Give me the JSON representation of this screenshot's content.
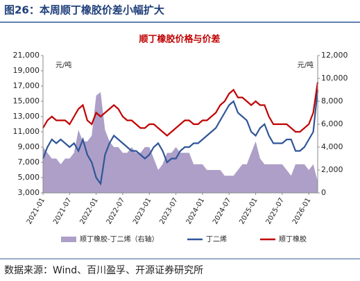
{
  "header": {
    "title": "图26：本周顺丁橡胶价差小幅扩大"
  },
  "chart_data": {
    "type": "line",
    "title": "顺丁橡胶价格与价差",
    "y_unit": "元/吨",
    "y2_unit": "元/吨",
    "categories": [
      "2021-01",
      null,
      null,
      null,
      null,
      null,
      "2021-07",
      null,
      null,
      null,
      null,
      null,
      "2022-01",
      null,
      null,
      null,
      null,
      null,
      "2022-07",
      null,
      null,
      null,
      null,
      null,
      "2023-01",
      null,
      null,
      null,
      null,
      null,
      "2023-07",
      null,
      null,
      null,
      null,
      null,
      "2024-01",
      null,
      null,
      null,
      null,
      null,
      "2024-07",
      null,
      null,
      null,
      null,
      null,
      "2025-01",
      null,
      null,
      null,
      null,
      null,
      "2025-07",
      null,
      null,
      null,
      null,
      null,
      "2026-01",
      null,
      null
    ],
    "series": [
      {
        "name": "顺丁橡胶-丁二烯（右轴）",
        "type": "area",
        "axis": "y2",
        "color": "#ad9fc8",
        "values": [
          4000,
          3500,
          3000,
          3000,
          2500,
          3000,
          3000,
          3500,
          5500,
          4500,
          4500,
          5000,
          8500,
          8800,
          5500,
          4500,
          4000,
          4000,
          3500,
          3500,
          4000,
          3500,
          3500,
          4000,
          4000,
          3000,
          2000,
          2500,
          3500,
          3500,
          4000,
          3500,
          3500,
          3500,
          2500,
          2500,
          2500,
          2000,
          2000,
          2000,
          2000,
          1500,
          1500,
          1500,
          2000,
          2500,
          2500,
          3500,
          4500,
          3000,
          2500,
          2500,
          2500,
          2500,
          2500,
          2000,
          1500,
          2500,
          2500,
          2500,
          2000,
          2500,
          1000
        ]
      },
      {
        "name": "丁二烯",
        "type": "line",
        "color": "#2f5597",
        "values": [
          7500,
          9000,
          10000,
          9500,
          10000,
          9500,
          9000,
          9500,
          8500,
          10000,
          8000,
          7000,
          5000,
          4200,
          8000,
          9500,
          10500,
          10000,
          9500,
          9000,
          8500,
          8500,
          8000,
          7500,
          8000,
          9000,
          9500,
          8500,
          7000,
          7500,
          7500,
          8500,
          9000,
          9000,
          9500,
          9500,
          10000,
          10500,
          11000,
          11500,
          12500,
          13500,
          14500,
          15000,
          13500,
          13000,
          12500,
          11000,
          10500,
          11500,
          12000,
          10500,
          9500,
          9500,
          9500,
          10000,
          10000,
          8500,
          8500,
          9000,
          10000,
          11000,
          16500
        ]
      },
      {
        "name": "顺丁橡胶",
        "type": "line",
        "color": "#c00000",
        "values": [
          11500,
          12500,
          13000,
          12500,
          12500,
          12500,
          12000,
          13000,
          14000,
          14500,
          12500,
          12000,
          13500,
          13000,
          13500,
          14000,
          14500,
          14000,
          13000,
          12500,
          12500,
          12000,
          11500,
          11500,
          12000,
          12000,
          11500,
          11000,
          10500,
          11000,
          11500,
          12000,
          12500,
          12500,
          12000,
          12000,
          12500,
          12500,
          13000,
          13500,
          14500,
          15000,
          16000,
          16500,
          15500,
          15500,
          15000,
          14500,
          15000,
          14500,
          14500,
          13000,
          12000,
          12000,
          12000,
          12000,
          11500,
          11000,
          11000,
          11500,
          12000,
          13500,
          17500
        ]
      }
    ],
    "ylim": [
      3000,
      21000
    ],
    "yticks": [
      {
        "value": 3000,
        "label": "3,000"
      },
      {
        "value": 5000,
        "label": "5,000"
      },
      {
        "value": 7000,
        "label": "7,000"
      },
      {
        "value": 9000,
        "label": "9,000"
      },
      {
        "value": 11000,
        "label": "11,000"
      },
      {
        "value": 13000,
        "label": "13,000"
      },
      {
        "value": 15000,
        "label": "15,000"
      },
      {
        "value": 17000,
        "label": "17,000"
      },
      {
        "value": 19000,
        "label": "19,000"
      },
      {
        "value": 21000,
        "label": "21,000"
      }
    ],
    "y2lim": [
      0,
      12000
    ],
    "y2ticks": [
      0,
      {
        "value": 2000,
        "label": "2,000"
      },
      {
        "value": 4000,
        "label": "4,000"
      },
      {
        "value": 6000,
        "label": "6,000"
      },
      {
        "value": 8000,
        "label": "8,000"
      },
      {
        "value": 10000,
        "label": "10,000"
      },
      {
        "value": 12000,
        "label": "12,000"
      }
    ],
    "grid": false
  },
  "footer": {
    "source": "数据来源：Wind、百川盈孚、开源证券研究所"
  }
}
